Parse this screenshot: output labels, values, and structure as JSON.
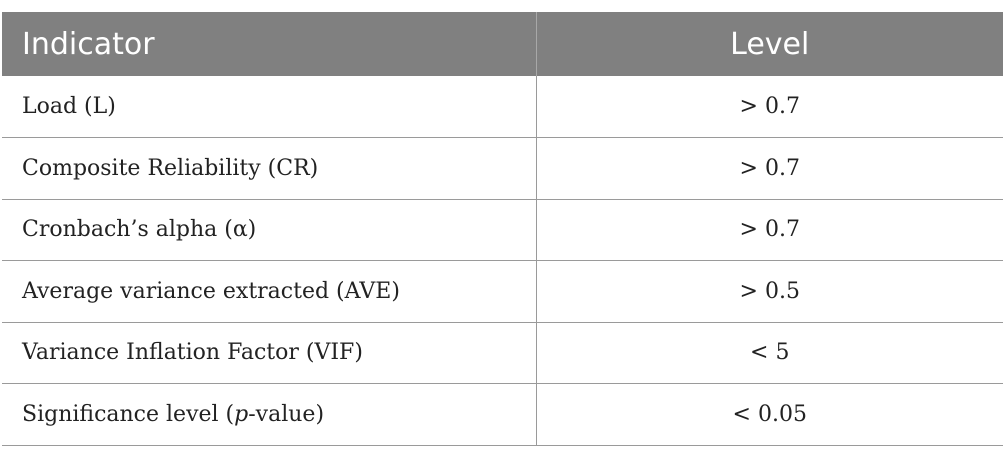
{
  "table": {
    "headers": [
      "Indicator",
      "Level"
    ],
    "rows": [
      {
        "indicator": "Load (L)",
        "level": "> 0.7"
      },
      {
        "indicator": "Composite Reliability (CR)",
        "level": "> 0.7"
      },
      {
        "indicator": "Cronbach’s alpha (α)",
        "level": "> 0.7"
      },
      {
        "indicator": "Average variance extracted (AVE)",
        "level": "> 0.5"
      },
      {
        "indicator": "Variance Inflation Factor (VIF)",
        "level": "< 5"
      },
      {
        "indicator_pre": "Significance level (",
        "indicator_em": "p",
        "indicator_post": "-value)",
        "level": "< 0.05"
      }
    ]
  }
}
